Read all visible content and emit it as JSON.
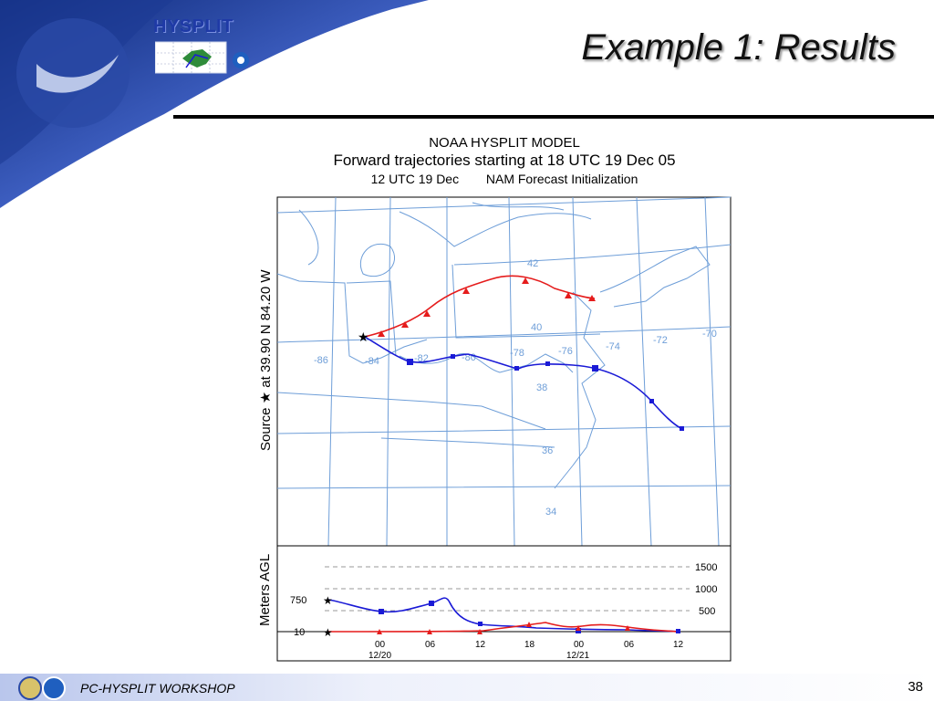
{
  "logo": {
    "text": "HYSPLIT"
  },
  "slide": {
    "title": "Example 1: Results",
    "page_number": "38"
  },
  "figure": {
    "title_line1": "NOAA HYSPLIT MODEL",
    "title_line2": "Forward trajectories starting at 18 UTC 19 Dec 05",
    "title_line3a": "12 UTC 19 Dec",
    "title_line3b": "NAM  Forecast Initialization",
    "source_label": "Source  ★  at   39.90 N   84.20 W",
    "height_axis_label": "Meters AGL",
    "map_labels": [
      "42",
      "40",
      "38",
      "36",
      "34",
      "-86",
      "-84",
      "-82",
      "-80",
      "-78",
      "-76",
      "-74",
      "-72",
      "-70"
    ],
    "height_ticks_left": [
      "750",
      "10"
    ],
    "height_ticks_right": [
      "1500",
      "1000",
      "500"
    ],
    "time_ticks": [
      "00",
      "06",
      "12",
      "18",
      "00",
      "06",
      "12"
    ],
    "date_labels": [
      "12/20",
      "12/21"
    ]
  },
  "footer": {
    "text": "PC-HYSPLIT WORKSHOP"
  },
  "colors": {
    "red_traj": "#e51c1c",
    "blue_traj": "#1a1ad6",
    "map_lines": "#6e9ed8",
    "title_blue": "#1f3aa6"
  }
}
